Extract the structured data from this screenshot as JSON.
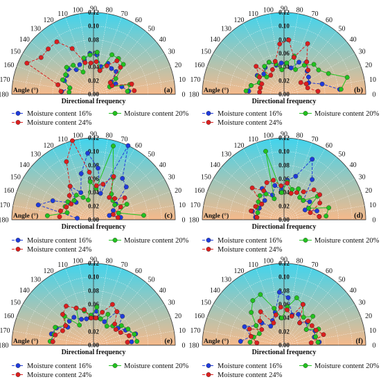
{
  "figure": {
    "angle_ticks": [
      "0",
      "10",
      "20",
      "30",
      "40",
      "50",
      "60",
      "70",
      "80",
      "90",
      "100",
      "110",
      "120",
      "130",
      "140",
      "150",
      "160",
      "170",
      "180"
    ],
    "r_ticks": [
      "0.00",
      "0.02",
      "0.04",
      "0.06",
      "0.08",
      "0.10",
      "0.12"
    ],
    "angle_label": "Angle (°)",
    "r_axis_label": "Directional frequency",
    "legend": [
      "Moisture content 16%",
      "Moisture content 20%",
      "Moisture content 24%"
    ],
    "series_colors": {
      "mc16": "#1f3bdc",
      "mc20": "#22c21f",
      "mc24": "#dc1f1f"
    },
    "gradient": {
      "top": "#3fd4ee",
      "bottom": "#f6b98a"
    }
  },
  "chart_data": [
    {
      "type": "scatter",
      "panel_label": "(a)",
      "angle_range": [
        0,
        180
      ],
      "r_range": [
        0,
        0.12
      ],
      "series": [
        {
          "name": "Moisture content 16%",
          "color": "#1f3bdc",
          "angles": [
            5,
            15,
            25,
            35,
            45,
            55,
            65,
            75,
            85,
            95,
            105,
            115,
            125,
            135,
            145,
            155,
            165,
            175
          ],
          "values": [
            0.052,
            0.043,
            0.036,
            0.032,
            0.047,
            0.046,
            0.05,
            0.042,
            0.058,
            0.06,
            0.052,
            0.048,
            0.044,
            0.052,
            0.048,
            0.047,
            0.036,
            0.047
          ]
        },
        {
          "name": "Moisture content 20%",
          "color": "#22c21f",
          "angles": [
            5,
            15,
            25,
            35,
            45,
            55,
            65,
            75,
            85,
            95,
            105,
            115,
            125,
            135,
            145,
            155,
            165,
            175
          ],
          "values": [
            0.05,
            0.055,
            0.026,
            0.04,
            0.062,
            0.064,
            0.064,
            0.036,
            0.062,
            0.058,
            0.055,
            0.036,
            0.052,
            0.056,
            0.05,
            0.05,
            0.036,
            0.036
          ]
        },
        {
          "name": "Moisture content 24%",
          "color": "#dc1f1f",
          "angles": [
            5,
            15,
            25,
            35,
            45,
            55,
            65,
            75,
            85,
            95,
            105,
            115,
            125,
            135,
            145,
            155,
            165,
            175
          ],
          "values": [
            0.06,
            0.058,
            0.03,
            0.03,
            0.056,
            0.06,
            0.046,
            0.036,
            0.048,
            0.046,
            0.048,
            0.074,
            0.094,
            0.094,
            0.094,
            0.108,
            0.054,
            0.048
          ]
        }
      ]
    },
    {
      "type": "scatter",
      "panel_label": "(b)",
      "angle_range": [
        0,
        180
      ],
      "r_range": [
        0,
        0.12
      ],
      "series": [
        {
          "name": "Moisture content 16%",
          "color": "#1f3bdc",
          "angles": [
            5,
            15,
            25,
            35,
            45,
            55,
            65,
            75,
            85,
            95,
            105,
            115,
            125,
            135,
            145,
            155,
            165,
            175
          ],
          "values": [
            0.082,
            0.058,
            0.04,
            0.044,
            0.048,
            0.058,
            0.052,
            0.04,
            0.046,
            0.046,
            0.044,
            0.052,
            0.048,
            0.042,
            0.048,
            0.04,
            0.05,
            0.052
          ]
        },
        {
          "name": "Moisture content 20%",
          "color": "#22c21f",
          "angles": [
            5,
            15,
            25,
            35,
            45,
            55,
            65,
            75,
            85,
            95,
            105,
            115,
            125,
            135,
            145,
            155,
            165,
            175
          ],
          "values": [
            0.084,
            0.096,
            0.072,
            0.062,
            0.062,
            0.052,
            0.04,
            0.058,
            0.046,
            0.036,
            0.046,
            0.052,
            0.05,
            0.036,
            0.046,
            0.04,
            0.05,
            0.056
          ]
        },
        {
          "name": "Moisture content 24%",
          "color": "#dc1f1f",
          "angles": [
            5,
            15,
            25,
            35,
            45,
            55,
            65,
            75,
            85,
            95,
            105,
            115,
            125,
            135,
            145,
            155,
            165,
            175
          ],
          "values": [
            0.05,
            0.036,
            0.036,
            0.03,
            0.05,
            0.058,
            0.082,
            0.056,
            0.08,
            0.074,
            0.05,
            0.04,
            0.034,
            0.058,
            0.044,
            0.036,
            0.036,
            0.036
          ]
        }
      ]
    },
    {
      "type": "scatter",
      "panel_label": "(c)",
      "angle_range": [
        0,
        180
      ],
      "r_range": [
        0,
        0.12
      ],
      "series": [
        {
          "name": "Moisture content 16%",
          "color": "#1f3bdc",
          "angles": [
            5,
            15,
            25,
            35,
            45,
            55,
            65,
            75,
            85,
            95,
            105,
            115,
            125,
            135,
            145,
            155,
            165,
            175
          ],
          "values": [
            0.04,
            0.024,
            0.032,
            0.04,
            0.068,
            0.074,
            0.12,
            0.04,
            0.076,
            0.098,
            0.07,
            0.044,
            0.06,
            0.036,
            0.044,
            0.066,
            0.084,
            0.024
          ]
        },
        {
          "name": "Moisture content 20%",
          "color": "#22c21f",
          "angles": [
            5,
            15,
            25,
            35,
            45,
            55,
            65,
            75,
            85,
            95,
            105,
            115,
            125,
            135,
            145,
            155,
            165,
            175
          ],
          "values": [
            0.074,
            0.038,
            0.054,
            0.038,
            0.04,
            0.046,
            0.068,
            0.112,
            0.046,
            0.056,
            0.03,
            0.036,
            0.044,
            0.04,
            0.046,
            0.046,
            0.04,
            0.068
          ]
        },
        {
          "name": "Moisture content 24%",
          "color": "#dc1f1f",
          "angles": [
            5,
            15,
            25,
            35,
            45,
            55,
            65,
            75,
            85,
            95,
            105,
            115,
            125,
            135,
            145,
            155,
            165,
            175
          ],
          "values": [
            0.036,
            0.03,
            0.044,
            0.056,
            0.044,
            0.04,
            0.07,
            0.054,
            0.05,
            0.07,
            0.12,
            0.094,
            0.06,
            0.05,
            0.04,
            0.044,
            0.05,
            0.05
          ]
        }
      ]
    },
    {
      "type": "scatter",
      "panel_label": "(d)",
      "angle_range": [
        0,
        180
      ],
      "r_range": [
        0,
        0.12
      ],
      "series": [
        {
          "name": "Moisture content 16%",
          "color": "#1f3bdc",
          "angles": [
            5,
            15,
            25,
            35,
            45,
            55,
            65,
            75,
            85,
            95,
            105,
            115,
            125,
            135,
            145,
            155,
            165,
            175
          ],
          "values": [
            0.052,
            0.05,
            0.034,
            0.046,
            0.04,
            0.072,
            0.098,
            0.066,
            0.058,
            0.044,
            0.052,
            0.04,
            0.056,
            0.04,
            0.04,
            0.04,
            0.048,
            0.042
          ]
        },
        {
          "name": "Moisture content 20%",
          "color": "#22c21f",
          "angles": [
            5,
            15,
            25,
            35,
            45,
            55,
            65,
            75,
            85,
            95,
            105,
            115,
            125,
            135,
            145,
            155,
            165,
            175
          ],
          "values": [
            0.062,
            0.068,
            0.04,
            0.06,
            0.04,
            0.04,
            0.05,
            0.046,
            0.056,
            0.04,
            0.104,
            0.034,
            0.046,
            0.05,
            0.046,
            0.044,
            0.04,
            0.04
          ]
        },
        {
          "name": "Moisture content 24%",
          "color": "#dc1f1f",
          "angles": [
            5,
            15,
            25,
            35,
            45,
            55,
            65,
            75,
            85,
            95,
            105,
            115,
            125,
            135,
            145,
            155,
            165,
            175
          ],
          "values": [
            0.052,
            0.04,
            0.058,
            0.064,
            0.062,
            0.05,
            0.044,
            0.04,
            0.054,
            0.05,
            0.06,
            0.06,
            0.052,
            0.066,
            0.04,
            0.046,
            0.05,
            0.04
          ]
        }
      ]
    },
    {
      "type": "scatter",
      "panel_label": "(e)",
      "angle_range": [
        0,
        180
      ],
      "r_range": [
        0,
        0.12
      ],
      "series": [
        {
          "name": "Moisture content 16%",
          "color": "#1f3bdc",
          "angles": [
            5,
            15,
            25,
            35,
            45,
            55,
            65,
            75,
            85,
            95,
            105,
            115,
            125,
            135,
            145,
            155,
            165,
            175
          ],
          "values": [
            0.056,
            0.064,
            0.052,
            0.044,
            0.06,
            0.06,
            0.038,
            0.04,
            0.05,
            0.044,
            0.04,
            0.042,
            0.05,
            0.05,
            0.046,
            0.06,
            0.064,
            0.06
          ]
        },
        {
          "name": "Moisture content 20%",
          "color": "#22c21f",
          "angles": [
            5,
            15,
            25,
            35,
            45,
            55,
            65,
            75,
            85,
            95,
            105,
            115,
            125,
            135,
            145,
            155,
            165,
            175
          ],
          "values": [
            0.064,
            0.062,
            0.056,
            0.05,
            0.04,
            0.034,
            0.05,
            0.04,
            0.056,
            0.044,
            0.052,
            0.06,
            0.036,
            0.06,
            0.05,
            0.062,
            0.06,
            0.064
          ]
        },
        {
          "name": "Moisture content 24%",
          "color": "#dc1f1f",
          "angles": [
            5,
            15,
            25,
            35,
            45,
            55,
            65,
            75,
            85,
            95,
            105,
            115,
            125,
            135,
            145,
            155,
            165,
            175
          ],
          "values": [
            0.05,
            0.054,
            0.044,
            0.04,
            0.044,
            0.06,
            0.066,
            0.05,
            0.04,
            0.04,
            0.054,
            0.06,
            0.07,
            0.064,
            0.05,
            0.05,
            0.058,
            0.06
          ]
        }
      ]
    },
    {
      "type": "scatter",
      "panel_label": "(f)",
      "angle_range": [
        0,
        180
      ],
      "r_range": [
        0,
        0.12
      ],
      "series": [
        {
          "name": "Moisture content 16%",
          "color": "#1f3bdc",
          "angles": [
            5,
            15,
            25,
            35,
            45,
            55,
            65,
            75,
            85,
            95,
            105,
            115,
            125,
            135,
            145,
            155,
            165,
            175
          ],
          "values": [
            0.052,
            0.046,
            0.05,
            0.04,
            0.048,
            0.04,
            0.05,
            0.046,
            0.07,
            0.078,
            0.05,
            0.04,
            0.034,
            0.046,
            0.05,
            0.064,
            0.05,
            0.064
          ]
        },
        {
          "name": "Moisture content 20%",
          "color": "#22c21f",
          "angles": [
            5,
            15,
            25,
            35,
            45,
            55,
            65,
            75,
            85,
            95,
            105,
            115,
            125,
            135,
            145,
            155,
            165,
            175
          ],
          "values": [
            0.05,
            0.048,
            0.056,
            0.04,
            0.06,
            0.05,
            0.066,
            0.072,
            0.056,
            0.04,
            0.056,
            0.082,
            0.08,
            0.068,
            0.05,
            0.04,
            0.046,
            0.05
          ]
        },
        {
          "name": "Moisture content 24%",
          "color": "#dc1f1f",
          "angles": [
            5,
            15,
            25,
            35,
            45,
            55,
            65,
            75,
            85,
            95,
            105,
            115,
            125,
            135,
            145,
            155,
            165,
            175
          ],
          "values": [
            0.04,
            0.06,
            0.052,
            0.05,
            0.05,
            0.04,
            0.066,
            0.044,
            0.052,
            0.056,
            0.046,
            0.036,
            0.06,
            0.05,
            0.04,
            0.056,
            0.05,
            0.04
          ]
        }
      ]
    }
  ]
}
